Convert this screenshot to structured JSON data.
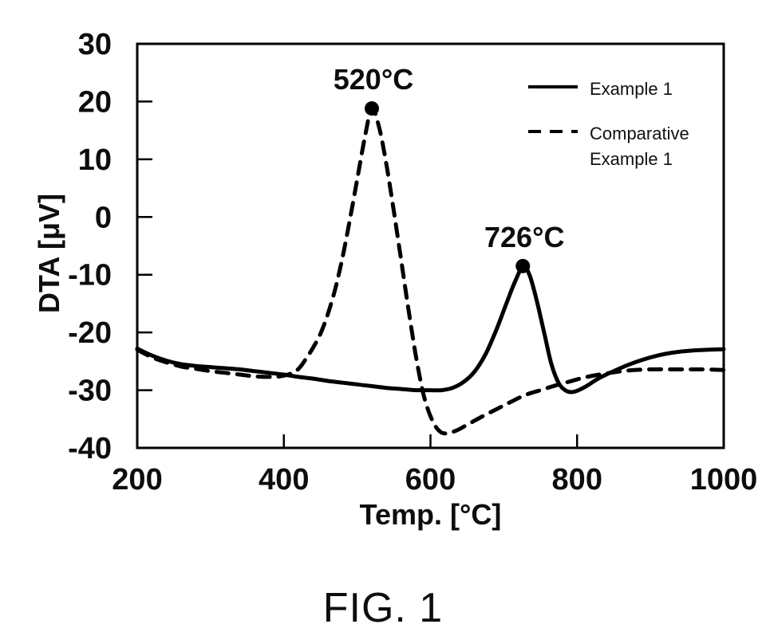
{
  "figure": {
    "caption": "FIG. 1"
  },
  "chart_data": {
    "type": "line",
    "title": "",
    "xlabel": "Temp. [°C]",
    "ylabel": "DTA [μV]",
    "xlim": [
      200,
      1000
    ],
    "ylim": [
      -40,
      30
    ],
    "xticks": [
      200,
      400,
      600,
      800,
      1000
    ],
    "yticks": [
      30,
      20,
      10,
      0,
      -10,
      -20,
      -30,
      -40
    ],
    "grid": false,
    "legend_position": "upper-right-inside",
    "line_color": "#000000",
    "series": [
      {
        "name": "Example 1",
        "style": "solid",
        "color": "#000000",
        "points": [
          [
            200,
            -22.8
          ],
          [
            220,
            -24.0
          ],
          [
            240,
            -24.9
          ],
          [
            260,
            -25.5
          ],
          [
            280,
            -25.8
          ],
          [
            300,
            -26.0
          ],
          [
            320,
            -26.2
          ],
          [
            340,
            -26.4
          ],
          [
            360,
            -26.7
          ],
          [
            380,
            -27.0
          ],
          [
            400,
            -27.3
          ],
          [
            420,
            -27.7
          ],
          [
            440,
            -28.0
          ],
          [
            460,
            -28.4
          ],
          [
            480,
            -28.7
          ],
          [
            500,
            -29.0
          ],
          [
            520,
            -29.3
          ],
          [
            540,
            -29.6
          ],
          [
            560,
            -29.8
          ],
          [
            580,
            -30.0
          ],
          [
            600,
            -30.0
          ],
          [
            615,
            -30.0
          ],
          [
            630,
            -29.6
          ],
          [
            645,
            -28.6
          ],
          [
            660,
            -26.8
          ],
          [
            675,
            -23.8
          ],
          [
            690,
            -19.5
          ],
          [
            705,
            -14.5
          ],
          [
            715,
            -11.3
          ],
          [
            726,
            -8.6
          ],
          [
            735,
            -10.0
          ],
          [
            745,
            -14.5
          ],
          [
            755,
            -20.0
          ],
          [
            765,
            -25.5
          ],
          [
            775,
            -28.8
          ],
          [
            785,
            -30.1
          ],
          [
            795,
            -30.3
          ],
          [
            810,
            -29.5
          ],
          [
            830,
            -27.9
          ],
          [
            850,
            -26.7
          ],
          [
            870,
            -25.6
          ],
          [
            890,
            -24.7
          ],
          [
            910,
            -24.0
          ],
          [
            930,
            -23.5
          ],
          [
            960,
            -23.1
          ],
          [
            1000,
            -22.9
          ]
        ]
      },
      {
        "name": "Comparative Example 1",
        "style": "dashed",
        "color": "#000000",
        "points": [
          [
            200,
            -23.0
          ],
          [
            220,
            -24.3
          ],
          [
            240,
            -25.2
          ],
          [
            260,
            -25.9
          ],
          [
            280,
            -26.3
          ],
          [
            300,
            -26.7
          ],
          [
            320,
            -27.0
          ],
          [
            340,
            -27.3
          ],
          [
            360,
            -27.6
          ],
          [
            380,
            -27.7
          ],
          [
            395,
            -27.6
          ],
          [
            410,
            -27.1
          ],
          [
            420,
            -26.3
          ],
          [
            430,
            -24.6
          ],
          [
            440,
            -22.6
          ],
          [
            450,
            -20.2
          ],
          [
            460,
            -16.8
          ],
          [
            470,
            -12.5
          ],
          [
            480,
            -7.0
          ],
          [
            490,
            -0.5
          ],
          [
            500,
            6.5
          ],
          [
            510,
            13.5
          ],
          [
            520,
            18.8
          ],
          [
            530,
            15.5
          ],
          [
            540,
            9.0
          ],
          [
            550,
            1.0
          ],
          [
            560,
            -7.5
          ],
          [
            570,
            -16.0
          ],
          [
            580,
            -24.0
          ],
          [
            590,
            -30.5
          ],
          [
            600,
            -34.5
          ],
          [
            610,
            -36.8
          ],
          [
            620,
            -37.5
          ],
          [
            635,
            -37.0
          ],
          [
            650,
            -36.0
          ],
          [
            670,
            -34.6
          ],
          [
            690,
            -33.3
          ],
          [
            710,
            -32.0
          ],
          [
            730,
            -30.8
          ],
          [
            750,
            -30.0
          ],
          [
            770,
            -29.2
          ],
          [
            790,
            -28.5
          ],
          [
            810,
            -27.8
          ],
          [
            830,
            -27.3
          ],
          [
            850,
            -26.9
          ],
          [
            870,
            -26.6
          ],
          [
            900,
            -26.4
          ],
          [
            940,
            -26.4
          ],
          [
            970,
            -26.4
          ],
          [
            1000,
            -26.5
          ]
        ]
      }
    ],
    "annotations": [
      {
        "label": "520°C",
        "x": 520,
        "y": 18.8,
        "marker": "filled-circle"
      },
      {
        "label": "726°C",
        "x": 726,
        "y": -8.5,
        "marker": "filled-circle"
      }
    ]
  }
}
